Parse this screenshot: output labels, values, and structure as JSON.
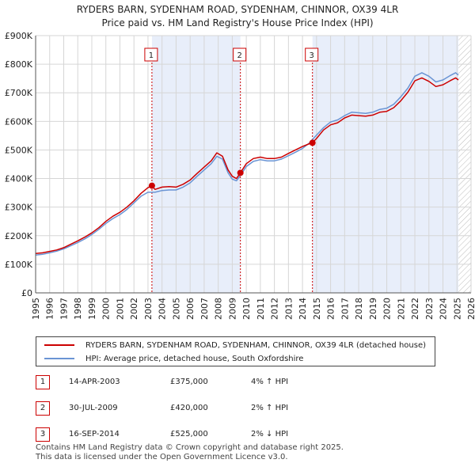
{
  "chart_data": {
    "type": "line",
    "title_line1": "RYDERS BARN, SYDENHAM ROAD, SYDENHAM, CHINNOR, OX39 4LR",
    "title_line2": "Price paid vs. HM Land Registry's House Price Index (HPI)",
    "xlim": [
      1995,
      2026
    ],
    "ylim": [
      0,
      900000
    ],
    "y_ticks": [
      0,
      100000,
      200000,
      300000,
      400000,
      500000,
      600000,
      700000,
      800000,
      900000
    ],
    "y_tick_labels": [
      "£0",
      "£100K",
      "£200K",
      "£300K",
      "£400K",
      "£500K",
      "£600K",
      "£700K",
      "£800K",
      "£900K"
    ],
    "x_ticks": [
      1995,
      1996,
      1997,
      1998,
      1999,
      2000,
      2001,
      2002,
      2003,
      2004,
      2005,
      2006,
      2007,
      2008,
      2009,
      2010,
      2011,
      2012,
      2013,
      2014,
      2015,
      2016,
      2017,
      2018,
      2019,
      2020,
      2021,
      2022,
      2023,
      2024,
      2025,
      2026
    ],
    "series": [
      {
        "name": "RYDERS BARN, SYDENHAM ROAD, SYDENHAM, CHINNOR, OX39 4LR (detached house)",
        "color": "#cc0000",
        "x": [
          1995.0,
          1995.5,
          1996.0,
          1996.5,
          1997.0,
          1997.5,
          1998.0,
          1998.5,
          1999.0,
          1999.5,
          2000.0,
          2000.5,
          2001.0,
          2001.5,
          2002.0,
          2002.5,
          2003.0,
          2003.28,
          2003.5,
          2004.0,
          2004.5,
          2005.0,
          2005.5,
          2006.0,
          2006.5,
          2007.0,
          2007.5,
          2007.9,
          2008.3,
          2008.7,
          2009.0,
          2009.3,
          2009.58,
          2010.0,
          2010.5,
          2011.0,
          2011.5,
          2012.0,
          2012.5,
          2013.0,
          2013.5,
          2014.0,
          2014.5,
          2014.71,
          2015.0,
          2015.5,
          2016.0,
          2016.5,
          2017.0,
          2017.5,
          2018.0,
          2018.5,
          2019.0,
          2019.5,
          2020.0,
          2020.5,
          2021.0,
          2021.5,
          2022.0,
          2022.5,
          2023.0,
          2023.5,
          2024.0,
          2024.5,
          2024.9,
          2025.1
        ],
        "y": [
          138000,
          140000,
          145000,
          150000,
          158000,
          170000,
          182000,
          195000,
          210000,
          228000,
          250000,
          268000,
          282000,
          300000,
          322000,
          348000,
          368000,
          375000,
          362000,
          370000,
          372000,
          370000,
          380000,
          395000,
          418000,
          440000,
          462000,
          490000,
          478000,
          430000,
          408000,
          400000,
          420000,
          452000,
          470000,
          475000,
          470000,
          470000,
          475000,
          488000,
          500000,
          512000,
          522000,
          525000,
          540000,
          570000,
          588000,
          595000,
          612000,
          622000,
          620000,
          618000,
          622000,
          632000,
          635000,
          648000,
          672000,
          702000,
          742000,
          752000,
          740000,
          722000,
          728000,
          742000,
          752000,
          745000
        ]
      },
      {
        "name": "HPI: Average price, detached house, South Oxfordshire",
        "color": "#6a94d4",
        "x": [
          1995.0,
          1995.5,
          1996.0,
          1996.5,
          1997.0,
          1997.5,
          1998.0,
          1998.5,
          1999.0,
          1999.5,
          2000.0,
          2000.5,
          2001.0,
          2001.5,
          2002.0,
          2002.5,
          2003.0,
          2003.5,
          2004.0,
          2004.5,
          2005.0,
          2005.5,
          2006.0,
          2006.5,
          2007.0,
          2007.5,
          2007.9,
          2008.3,
          2008.7,
          2009.0,
          2009.3,
          2009.6,
          2010.0,
          2010.5,
          2011.0,
          2011.5,
          2012.0,
          2012.5,
          2013.0,
          2013.5,
          2014.0,
          2014.5,
          2015.0,
          2015.5,
          2016.0,
          2016.5,
          2017.0,
          2017.5,
          2018.0,
          2018.5,
          2019.0,
          2019.5,
          2020.0,
          2020.5,
          2021.0,
          2021.5,
          2022.0,
          2022.5,
          2023.0,
          2023.5,
          2024.0,
          2024.5,
          2024.9,
          2025.1
        ],
        "y": [
          132000,
          135000,
          140000,
          146000,
          154000,
          165000,
          176000,
          189000,
          204000,
          222000,
          243000,
          260000,
          274000,
          292000,
          315000,
          338000,
          352000,
          352000,
          358000,
          360000,
          360000,
          370000,
          385000,
          408000,
          430000,
          452000,
          478000,
          468000,
          420000,
          398000,
          392000,
          412000,
          442000,
          460000,
          466000,
          462000,
          462000,
          468000,
          480000,
          492000,
          505000,
          525000,
          552000,
          578000,
          598000,
          605000,
          620000,
          632000,
          630000,
          628000,
          632000,
          642000,
          646000,
          660000,
          686000,
          716000,
          758000,
          770000,
          758000,
          738000,
          745000,
          760000,
          770000,
          762000
        ]
      }
    ],
    "purchases": [
      {
        "label": "1",
        "x": 2003.28,
        "y": 375000
      },
      {
        "label": "2",
        "x": 2009.58,
        "y": 420000
      },
      {
        "label": "3",
        "x": 2014.71,
        "y": 525000
      }
    ],
    "forecast_start": 2025.1
  },
  "legend": {
    "red_label": "RYDERS BARN, SYDENHAM ROAD, SYDENHAM, CHINNOR, OX39 4LR (detached house)",
    "blue_label": "HPI: Average price, detached house, South Oxfordshire"
  },
  "transactions": [
    {
      "num": "1",
      "date": "14-APR-2003",
      "price": "£375,000",
      "hpi": "4% ↑ HPI"
    },
    {
      "num": "2",
      "date": "30-JUL-2009",
      "price": "£420,000",
      "hpi": "2% ↑ HPI"
    },
    {
      "num": "3",
      "date": "16-SEP-2014",
      "price": "£525,000",
      "hpi": "2% ↓ HPI"
    }
  ],
  "footer": {
    "line1": "Contains HM Land Registry data © Crown copyright and database right 2025.",
    "line2": "This data is licensed under the Open Government Licence v3.0."
  }
}
